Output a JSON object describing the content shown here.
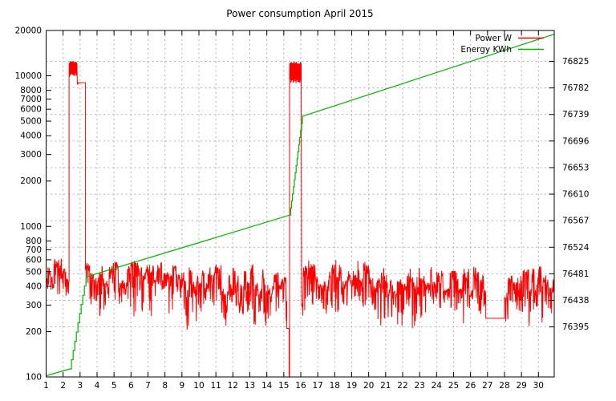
{
  "title": "Power consumption April 2015",
  "legend": {
    "position": "top-right-inside",
    "entries": [
      {
        "label": "Power W"
      },
      {
        "label": "Energy KWh"
      }
    ]
  },
  "chart_data": {
    "type": "line",
    "title": "Power consumption April 2015",
    "background": "#ffffff",
    "grid": {
      "visible": true,
      "style": "dashed",
      "color": "#b0b0b0",
      "horizontal_follows": "right_axis_ticks",
      "vertical_follows": "x_ticks"
    },
    "x_axis": {
      "label": "",
      "range": [
        1,
        30.93
      ],
      "ticks": [
        1,
        2,
        3,
        4,
        5,
        6,
        7,
        8,
        9,
        10,
        11,
        12,
        13,
        14,
        15,
        16,
        17,
        18,
        19,
        20,
        21,
        22,
        23,
        24,
        25,
        26,
        27,
        28,
        29,
        30
      ]
    },
    "y_left_axis": {
      "label": "",
      "scale": "log",
      "range": [
        100,
        20000
      ],
      "ticks": [
        20000,
        10000,
        8000,
        7000,
        6000,
        5000,
        4000,
        3000,
        2000,
        1000,
        800,
        700,
        600,
        500,
        400,
        300,
        200,
        100
      ]
    },
    "y_right_axis": {
      "label": "",
      "scale": "linear",
      "range": [
        76314,
        76875
      ],
      "ticks": [
        76825,
        76782,
        76739,
        76696,
        76653,
        76610,
        76567,
        76524,
        76481,
        76438,
        76395
      ]
    },
    "series": [
      {
        "name": "Power W",
        "axis": "left",
        "unit": "W",
        "color": "#ff0000",
        "description": "Noisy household power draw ~200-620 W with two high-power events near day 2.4-3.3 (~9000-12500 W) and day 15.3-16.0 (~8900-12400 W); brief drop to 100 W at day 15.3; constant 245 W from day 26.9 to 28.0",
        "segments": [
          {
            "type": "noise",
            "from": 1.0,
            "to": 2.35,
            "min": 285,
            "max": 620
          },
          {
            "type": "block",
            "from": 2.35,
            "to": 2.84,
            "min": 9800,
            "max": 12500
          },
          {
            "type": "flat",
            "from": 2.84,
            "to": 2.88,
            "value": 8800
          },
          {
            "type": "flat",
            "from": 2.88,
            "to": 3.31,
            "value": 9000
          },
          {
            "type": "noise",
            "from": 3.31,
            "to": 9.0,
            "min": 230,
            "max": 620
          },
          {
            "type": "noise",
            "from": 9.0,
            "to": 15.18,
            "min": 200,
            "max": 580
          },
          {
            "type": "flat",
            "from": 15.18,
            "to": 15.31,
            "value": 210
          },
          {
            "type": "flat",
            "from": 15.31,
            "to": 15.34,
            "value": 100
          },
          {
            "type": "block",
            "from": 15.34,
            "to": 16.03,
            "min": 8900,
            "max": 12400
          },
          {
            "type": "noise",
            "from": 16.05,
            "to": 20.9,
            "min": 210,
            "max": 620
          },
          {
            "type": "noise",
            "from": 20.9,
            "to": 26.9,
            "min": 200,
            "max": 560
          },
          {
            "type": "flat",
            "from": 26.9,
            "to": 28.0,
            "value": 245
          },
          {
            "type": "noise",
            "from": 28.0,
            "to": 30.93,
            "min": 200,
            "max": 560
          }
        ]
      },
      {
        "name": "Energy KWh",
        "axis": "right",
        "unit": "KWh",
        "color": "#00b400",
        "description": "Cumulative energy meter reading rising from ~76316 to ~76869 KWh; steep stair climbs during the two high-power events",
        "points": [
          {
            "day": 1.0,
            "kwh": 76316
          },
          {
            "day": 2.4,
            "kwh": 76327
          },
          {
            "day": 3.35,
            "kwh": 76476,
            "steps": 10
          },
          {
            "day": 15.35,
            "kwh": 76576
          },
          {
            "day": 16.1,
            "kwh": 76736,
            "steps": 14
          },
          {
            "day": 30.93,
            "kwh": 76869
          }
        ]
      }
    ]
  }
}
